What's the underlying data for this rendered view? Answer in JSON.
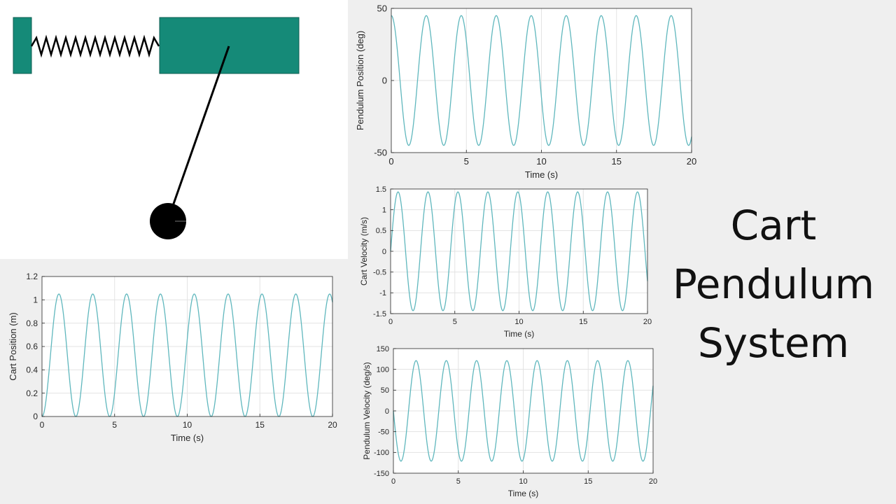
{
  "title_lines": [
    "Cart",
    "Pendulum",
    "System"
  ],
  "colors": {
    "cart": "#158a78",
    "trace": "#5fb7bd",
    "grid": "#e3e3e3",
    "axis": "#262626",
    "pendulum": "#000000"
  },
  "chart_data": [
    {
      "id": "pendulum-position",
      "type": "line",
      "xlabel": "Time (s)",
      "ylabel": "Pendulum Position (deg)",
      "xlim": [
        0,
        20
      ],
      "ylim": [
        -50,
        50
      ],
      "xticks": [
        0,
        5,
        10,
        15,
        20
      ],
      "yticks": [
        -50,
        0,
        50
      ],
      "grid": true,
      "series": [
        {
          "amplitude": 45,
          "offset": 0,
          "period": 2.33,
          "phase": "cosine",
          "x_range": [
            0,
            20
          ]
        }
      ]
    },
    {
      "id": "cart-velocity",
      "type": "line",
      "xlabel": "Time (s)",
      "ylabel": "Cart Velocity (m/s)",
      "xlim": [
        0,
        20
      ],
      "ylim": [
        -1.5,
        1.5
      ],
      "xticks": [
        0,
        5,
        10,
        15,
        20
      ],
      "yticks": [
        -1.5,
        -1,
        -0.5,
        0,
        0.5,
        1,
        1.5
      ],
      "grid": true,
      "series": [
        {
          "amplitude": 1.43,
          "offset": 0,
          "period": 2.33,
          "phase": "sine",
          "x_range": [
            0,
            20
          ]
        }
      ]
    },
    {
      "id": "pendulum-velocity",
      "type": "line",
      "xlabel": "Time (s)",
      "ylabel": "Pendulum Velocity (deg/s)",
      "xlim": [
        0,
        20
      ],
      "ylim": [
        -150,
        150
      ],
      "xticks": [
        0,
        5,
        10,
        15,
        20
      ],
      "yticks": [
        -150,
        -100,
        -50,
        0,
        50,
        100,
        150
      ],
      "grid": true,
      "series": [
        {
          "amplitude": 121,
          "offset": 0,
          "period": 2.33,
          "phase": "negative-sine",
          "x_range": [
            0,
            20
          ]
        }
      ]
    },
    {
      "id": "cart-position",
      "type": "line",
      "xlabel": "Time (s)",
      "ylabel": "Cart Position (m)",
      "xlim": [
        0,
        20
      ],
      "ylim": [
        0,
        1.2
      ],
      "xticks": [
        0,
        5,
        10,
        15,
        20
      ],
      "yticks": [
        0,
        0.2,
        0.4,
        0.6,
        0.8,
        1,
        1.2
      ],
      "grid": true,
      "series": [
        {
          "amplitude": 0.525,
          "offset": 0.525,
          "period": 2.33,
          "phase": "one-minus-cosine",
          "x_range": [
            0,
            20
          ]
        }
      ]
    }
  ]
}
